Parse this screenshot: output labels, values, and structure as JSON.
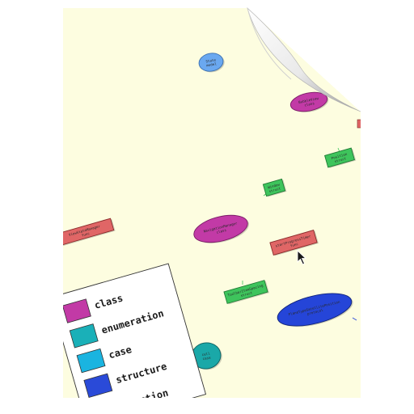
{
  "nodes": [
    {
      "id": "n1",
      "kind": "class",
      "lines": [
        "State",
        "model"
      ],
      "color": "#6aa8f0"
    },
    {
      "id": "n2",
      "kind": "class",
      "lines": [
        "BubbleView",
        "class"
      ],
      "color": "#c23aa6"
    },
    {
      "id": "n3",
      "kind": "structure",
      "lines": [
        "Position",
        "struct"
      ],
      "color": "#3ec45c"
    },
    {
      "id": "n4",
      "kind": "structure",
      "lines": [
        "Window",
        "struct"
      ],
      "color": "#3ec45c"
    },
    {
      "id": "n5",
      "kind": "class",
      "lines": [
        "NavigationManager",
        "class"
      ],
      "color": "#c23aa6"
    },
    {
      "id": "n6",
      "kind": "function",
      "lines": [
        "ViewStateManager",
        "func"
      ],
      "color": "#e06666"
    },
    {
      "id": "n7",
      "kind": "function",
      "lines": [
        "startProgressTimer",
        "func"
      ],
      "color": "#e06666"
    },
    {
      "id": "n8",
      "kind": "structure",
      "lines": [
        "ToolbarItemSpacing",
        "struct"
      ],
      "color": "#3ec45c"
    },
    {
      "id": "n9",
      "kind": "protocol",
      "lines": [
        "PlaneTypeSatellitePosition",
        "protocol"
      ],
      "color": "#2545d8"
    },
    {
      "id": "n10",
      "kind": "case",
      "lines": [
        "cell",
        "case"
      ],
      "color": "#1aa8a8"
    }
  ],
  "legend": [
    {
      "label": "class",
      "color": "#c23aa6",
      "icon": "class-swatch"
    },
    {
      "label": "enumeration",
      "color": "#1ab0b8",
      "icon": "enumeration-swatch"
    },
    {
      "label": "case",
      "color": "#1ab4e0",
      "icon": "case-swatch"
    },
    {
      "label": "structure",
      "color": "#2a4ad8",
      "icon": "structure-swatch"
    },
    {
      "label": "function",
      "color": "#2a4ad8",
      "icon": "function-swatch"
    }
  ],
  "colors": {
    "paper": "#fdfde0",
    "fold_shadow": "#bfbfbf",
    "fold_light": "#f4f4f4",
    "edge": "#3ec45c"
  },
  "icons": {
    "cursor": "cursor-arrow-icon",
    "page_curl": "page-curl-icon"
  }
}
